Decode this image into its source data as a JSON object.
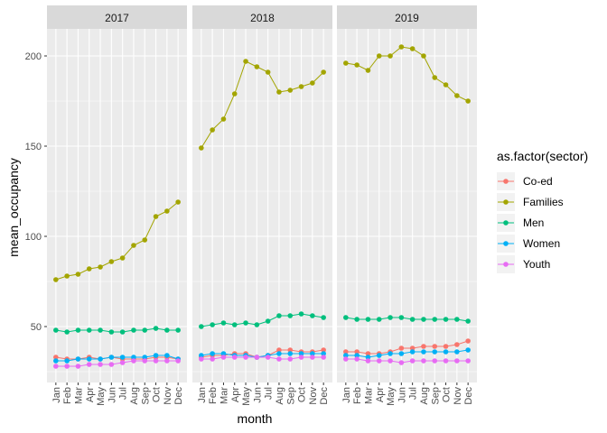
{
  "chart_data": {
    "type": "line",
    "facet_variable": "year",
    "facets": [
      "2017",
      "2018",
      "2019"
    ],
    "x": [
      "Jan",
      "Feb",
      "Mar",
      "Apr",
      "May",
      "Jun",
      "Jul",
      "Aug",
      "Sep",
      "Oct",
      "Nov",
      "Dec"
    ],
    "xlabel": "month",
    "ylabel": "mean_occupancy",
    "ylim": [
      19,
      215
    ],
    "yticks": [
      50,
      100,
      150,
      200
    ],
    "grid": true,
    "legend": {
      "title": "as.factor(sector)",
      "placement": "right"
    },
    "series": [
      {
        "name": "Co-ed",
        "color": "#F8766D",
        "values": {
          "2017": [
            33,
            32,
            32,
            33,
            32,
            33,
            32,
            32,
            32,
            33,
            33,
            32
          ],
          "2018": [
            33,
            34,
            34,
            35,
            35,
            33,
            34,
            37,
            37,
            36,
            36,
            37
          ],
          "2019": [
            36,
            36,
            35,
            35,
            36,
            38,
            38,
            39,
            39,
            39,
            40,
            42
          ]
        }
      },
      {
        "name": "Families",
        "color": "#A3A500",
        "values": {
          "2017": [
            76,
            78,
            79,
            82,
            83,
            86,
            88,
            95,
            98,
            111,
            114,
            119
          ],
          "2018": [
            149,
            159,
            165,
            179,
            197,
            194,
            191,
            180,
            181,
            183,
            185,
            191
          ],
          "2019": [
            196,
            195,
            192,
            200,
            200,
            205,
            204,
            200,
            188,
            184,
            178,
            175
          ]
        }
      },
      {
        "name": "Men",
        "color": "#00BF7D",
        "values": {
          "2017": [
            48,
            47,
            48,
            48,
            48,
            47,
            47,
            48,
            48,
            49,
            48,
            48
          ],
          "2018": [
            50,
            51,
            52,
            51,
            52,
            51,
            53,
            56,
            56,
            57,
            56,
            55
          ],
          "2019": [
            55,
            54,
            54,
            54,
            55,
            55,
            54,
            54,
            54,
            54,
            54,
            53
          ]
        }
      },
      {
        "name": "Women",
        "color": "#00B0F6",
        "values": {
          "2017": [
            31,
            31,
            32,
            32,
            32,
            33,
            33,
            33,
            33,
            34,
            34,
            32
          ],
          "2018": [
            34,
            35,
            35,
            34,
            34,
            33,
            34,
            35,
            35,
            35,
            35,
            35
          ],
          "2019": [
            34,
            34,
            33,
            34,
            35,
            35,
            36,
            36,
            36,
            36,
            36,
            37
          ]
        }
      },
      {
        "name": "Youth",
        "color": "#E76BF3",
        "values": {
          "2017": [
            28,
            28,
            28,
            29,
            29,
            29,
            30,
            31,
            31,
            31,
            31,
            31
          ],
          "2018": [
            32,
            32,
            33,
            33,
            33,
            33,
            33,
            32,
            32,
            33,
            33,
            33
          ],
          "2019": [
            32,
            32,
            31,
            31,
            31,
            30,
            31,
            31,
            31,
            31,
            31,
            31
          ]
        }
      }
    ]
  }
}
